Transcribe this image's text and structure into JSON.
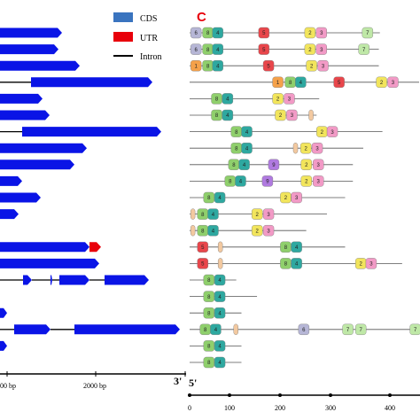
{
  "legend": {
    "items": [
      {
        "label": "CDS",
        "color": "#3a74bf"
      },
      {
        "label": "UTR",
        "color": "#e8000b"
      },
      {
        "label": "Intron",
        "color": "#000000"
      }
    ]
  },
  "panel_label": "C",
  "colors": {
    "cds": "#0a14e6",
    "utr": "#e8000b",
    "intron": "#000000",
    "motif_line": "#555555"
  },
  "left_axis": {
    "tick_labels": [
      "00 bp",
      "2000 bp"
    ],
    "end_label": "3'"
  },
  "right_axis": {
    "start_label": "5'",
    "tick_labels": [
      "0",
      "100",
      "200",
      "300",
      "400"
    ]
  },
  "motif_colors": {
    "1": "#f5a14a",
    "2": "#f2e55c",
    "3": "#f29ac6",
    "4": "#2ea8a0",
    "5": "#e8464b",
    "6": "#b6b6d6",
    "7": "#bfe8a7",
    "8": "#8fcf6c",
    "9": "#b07ae0",
    "10": "#f3c9a0"
  },
  "motif_rows": [
    {
      "len": 367,
      "motifs": [
        {
          "n": "6",
          "x": 2
        },
        {
          "n": "8",
          "x": 25
        },
        {
          "n": "4",
          "x": 44
        },
        {
          "n": "5",
          "x": 133
        },
        {
          "n": "2",
          "x": 222
        },
        {
          "n": "3",
          "x": 244
        },
        {
          "n": "7",
          "x": 333
        }
      ]
    },
    {
      "len": 365,
      "motifs": [
        {
          "n": "6",
          "x": 2
        },
        {
          "n": "8",
          "x": 25
        },
        {
          "n": "4",
          "x": 44
        },
        {
          "n": "5",
          "x": 133
        },
        {
          "n": "2",
          "x": 222
        },
        {
          "n": "3",
          "x": 244
        },
        {
          "n": "7",
          "x": 326
        }
      ]
    },
    {
      "len": 365,
      "motifs": [
        {
          "n": "1",
          "x": 2
        },
        {
          "n": "8",
          "x": 25
        },
        {
          "n": "4",
          "x": 44
        },
        {
          "n": "5",
          "x": 142
        },
        {
          "n": "2",
          "x": 225
        },
        {
          "n": "3",
          "x": 247
        }
      ]
    },
    {
      "len": 465,
      "motifs": [
        {
          "n": "1",
          "x": 160
        },
        {
          "n": "8",
          "x": 184
        },
        {
          "n": "4",
          "x": 204
        },
        {
          "n": "5",
          "x": 278
        },
        {
          "n": "2",
          "x": 360
        },
        {
          "n": "3",
          "x": 382
        }
      ]
    },
    {
      "len": 250,
      "motifs": [
        {
          "n": "8",
          "x": 42
        },
        {
          "n": "4",
          "x": 63
        },
        {
          "n": "2",
          "x": 160
        },
        {
          "n": "3",
          "x": 182
        }
      ]
    },
    {
      "len": 245,
      "motifs": [
        {
          "n": "8",
          "x": 42
        },
        {
          "n": "4",
          "x": 63
        },
        {
          "n": "2",
          "x": 165
        },
        {
          "n": "3",
          "x": 187
        },
        {
          "n": "10",
          "x": 230
        }
      ]
    },
    {
      "len": 372,
      "motifs": [
        {
          "n": "8",
          "x": 80
        },
        {
          "n": "4",
          "x": 100
        },
        {
          "n": "2",
          "x": 245
        },
        {
          "n": "3",
          "x": 265
        }
      ]
    },
    {
      "len": 335,
      "motifs": [
        {
          "n": "8",
          "x": 80
        },
        {
          "n": "4",
          "x": 100
        },
        {
          "n": "10",
          "x": 200
        },
        {
          "n": "2",
          "x": 214
        },
        {
          "n": "3",
          "x": 236
        }
      ]
    },
    {
      "len": 315,
      "motifs": [
        {
          "n": "8",
          "x": 75
        },
        {
          "n": "4",
          "x": 95
        },
        {
          "n": "9",
          "x": 152
        },
        {
          "n": "2",
          "x": 215
        },
        {
          "n": "3",
          "x": 238
        }
      ]
    },
    {
      "len": 315,
      "motifs": [
        {
          "n": "8",
          "x": 68
        },
        {
          "n": "4",
          "x": 88
        },
        {
          "n": "9",
          "x": 140
        },
        {
          "n": "2",
          "x": 215
        },
        {
          "n": "3",
          "x": 238
        }
      ]
    },
    {
      "len": 300,
      "motifs": [
        {
          "n": "8",
          "x": 27
        },
        {
          "n": "4",
          "x": 48
        },
        {
          "n": "2",
          "x": 175
        },
        {
          "n": "3",
          "x": 196
        }
      ]
    },
    {
      "len": 265,
      "motifs": [
        {
          "n": "10",
          "x": 2
        },
        {
          "n": "8",
          "x": 15
        },
        {
          "n": "4",
          "x": 35
        },
        {
          "n": "2",
          "x": 120
        },
        {
          "n": "3",
          "x": 142
        }
      ]
    },
    {
      "len": 225,
      "motifs": [
        {
          "n": "10",
          "x": 2
        },
        {
          "n": "8",
          "x": 15
        },
        {
          "n": "4",
          "x": 35
        },
        {
          "n": "2",
          "x": 120
        },
        {
          "n": "3",
          "x": 142
        }
      ]
    },
    {
      "len": 300,
      "motifs": [
        {
          "n": "5",
          "x": 15
        },
        {
          "n": "10",
          "x": 55
        },
        {
          "n": "8",
          "x": 175
        },
        {
          "n": "4",
          "x": 196
        }
      ]
    },
    {
      "len": 410,
      "motifs": [
        {
          "n": "5",
          "x": 15
        },
        {
          "n": "10",
          "x": 55
        },
        {
          "n": "8",
          "x": 175
        },
        {
          "n": "4",
          "x": 196
        },
        {
          "n": "2",
          "x": 320
        },
        {
          "n": "3",
          "x": 340
        }
      ]
    },
    {
      "len": 90,
      "motifs": [
        {
          "n": "8",
          "x": 27
        },
        {
          "n": "4",
          "x": 48
        }
      ]
    },
    {
      "len": 130,
      "motifs": [
        {
          "n": "8",
          "x": 27
        },
        {
          "n": "4",
          "x": 48
        }
      ]
    },
    {
      "len": 100,
      "motifs": [
        {
          "n": "8",
          "x": 27
        },
        {
          "n": "4",
          "x": 48
        }
      ]
    },
    {
      "len": 465,
      "motifs": [
        {
          "n": "8",
          "x": 20
        },
        {
          "n": "4",
          "x": 40
        },
        {
          "n": "10",
          "x": 85
        },
        {
          "n": "6",
          "x": 210
        },
        {
          "n": "7",
          "x": 295
        },
        {
          "n": "7",
          "x": 320
        },
        {
          "n": "7",
          "x": 425
        }
      ]
    },
    {
      "len": 100,
      "motifs": [
        {
          "n": "8",
          "x": 27
        },
        {
          "n": "4",
          "x": 48
        }
      ]
    },
    {
      "len": 100,
      "motifs": [
        {
          "n": "8",
          "x": 27
        },
        {
          "n": "4",
          "x": 48
        }
      ]
    }
  ],
  "gene_rows": [
    {
      "segments": [
        {
          "type": "cds",
          "x0": 0,
          "x1": 70
        }
      ]
    },
    {
      "segments": [
        {
          "type": "cds",
          "x0": 0,
          "x1": 66
        }
      ]
    },
    {
      "segments": [
        {
          "type": "cds",
          "x0": 0,
          "x1": 90
        }
      ]
    },
    {
      "segments": [
        {
          "type": "intron",
          "x0": 0,
          "x1": 35
        },
        {
          "type": "cds",
          "x0": 35,
          "x1": 172
        }
      ]
    },
    {
      "segments": [
        {
          "type": "cds",
          "x0": 0,
          "x1": 48
        }
      ]
    },
    {
      "segments": [
        {
          "type": "cds",
          "x0": 0,
          "x1": 56
        }
      ]
    },
    {
      "segments": [
        {
          "type": "intron",
          "x0": 0,
          "x1": 25
        },
        {
          "type": "cds",
          "x0": 25,
          "x1": 182
        }
      ]
    },
    {
      "segments": [
        {
          "type": "cds",
          "x0": 0,
          "x1": 98
        }
      ]
    },
    {
      "segments": [
        {
          "type": "cds",
          "x0": 0,
          "x1": 84
        }
      ]
    },
    {
      "segments": [
        {
          "type": "cds",
          "x0": 0,
          "x1": 25
        }
      ]
    },
    {
      "segments": [
        {
          "type": "cds",
          "x0": 0,
          "x1": 46
        }
      ]
    },
    {
      "segments": [
        {
          "type": "cds",
          "x0": 0,
          "x1": 21
        }
      ]
    },
    {
      "segments": []
    },
    {
      "segments": [
        {
          "type": "cds",
          "x0": 0,
          "x1": 101
        },
        {
          "type": "utr",
          "x0": 101,
          "x1": 114
        }
      ]
    },
    {
      "segments": [
        {
          "type": "cds",
          "x0": 0,
          "x1": 112
        }
      ]
    },
    {
      "segments": [
        {
          "type": "intron",
          "x0": 0,
          "x1": 26
        },
        {
          "type": "cds",
          "x0": 26,
          "x1": 36
        },
        {
          "type": "intron",
          "x0": 36,
          "x1": 57
        },
        {
          "type": "cds",
          "x0": 57,
          "x1": 59
        },
        {
          "type": "intron",
          "x0": 59,
          "x1": 67
        },
        {
          "type": "cds",
          "x0": 67,
          "x1": 101
        },
        {
          "type": "intron",
          "x0": 101,
          "x1": 118
        },
        {
          "type": "cds",
          "x0": 118,
          "x1": 168
        }
      ]
    },
    {
      "segments": []
    },
    {
      "segments": [
        {
          "type": "cds",
          "x0": 0,
          "x1": 8
        }
      ]
    },
    {
      "segments": [
        {
          "type": "intron",
          "x0": 0,
          "x1": 16
        },
        {
          "type": "cds",
          "x0": 16,
          "x1": 57
        },
        {
          "type": "intron",
          "x0": 57,
          "x1": 84
        },
        {
          "type": "cds",
          "x0": 84,
          "x1": 203
        }
      ]
    },
    {
      "segments": [
        {
          "type": "cds",
          "x0": 0,
          "x1": 8
        }
      ]
    },
    {
      "segments": []
    }
  ]
}
